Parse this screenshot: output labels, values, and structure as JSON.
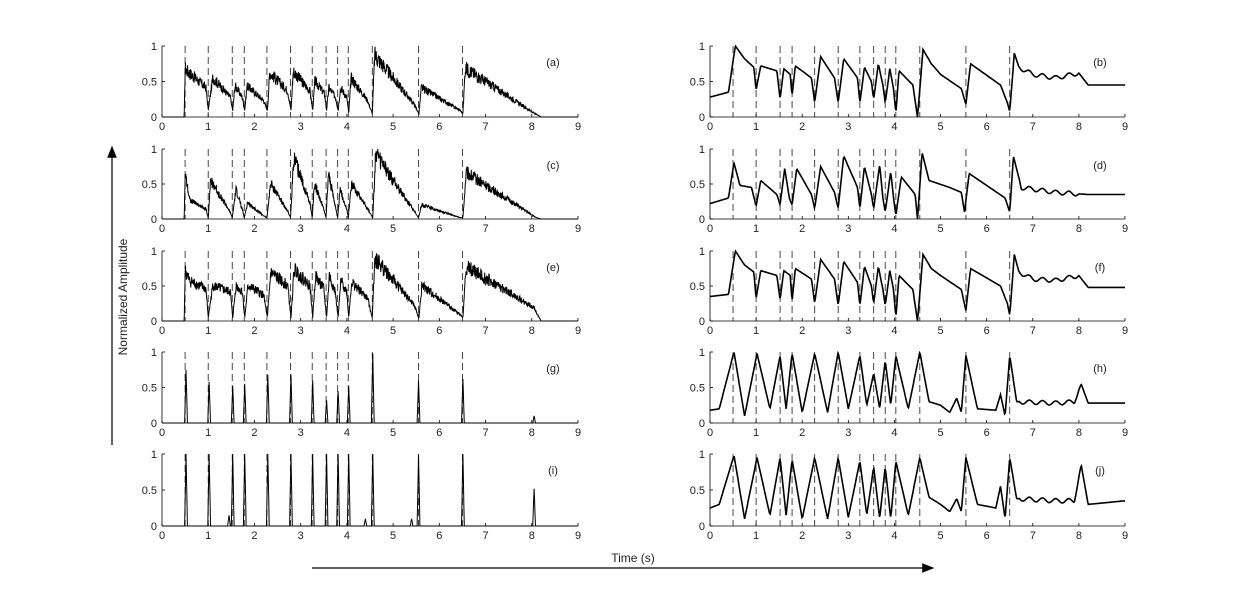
{
  "figure": {
    "ylabel": "Normalized Amplitude",
    "xlabel": "Time (s)"
  },
  "chart_data": {
    "type": "line",
    "xlabel": "Time (s)",
    "ylabel": "Normalized Amplitude",
    "xlim": [
      0,
      9
    ],
    "ylim": [
      0,
      1
    ],
    "xticks": [
      "0",
      "1",
      "2",
      "3",
      "4",
      "5",
      "6",
      "7",
      "8",
      "9"
    ],
    "yticks": [
      "0",
      "0.5",
      "1"
    ],
    "grid": false,
    "onset_markers_s": [
      0.5,
      1.0,
      1.52,
      1.78,
      2.27,
      2.78,
      3.25,
      3.55,
      3.8,
      4.03,
      4.55,
      5.55,
      6.5
    ],
    "panels": [
      {
        "label": "(a)",
        "column": "left",
        "row": 0,
        "style": "noisy",
        "envelope_t": [
          0,
          0.48,
          0.5,
          0.55,
          0.95,
          1.0,
          1.1,
          1.48,
          1.53,
          1.58,
          1.74,
          1.79,
          1.84,
          2.2,
          2.28,
          2.33,
          2.72,
          2.79,
          2.84,
          3.2,
          3.26,
          3.31,
          3.52,
          3.56,
          3.61,
          3.76,
          3.81,
          3.86,
          4.0,
          4.04,
          4.09,
          4.45,
          4.55,
          4.6,
          5.45,
          5.56,
          5.61,
          6.45,
          6.51,
          6.56,
          8.0,
          8.2,
          9
        ],
        "envelope_v": [
          0,
          0,
          0.75,
          0.7,
          0.45,
          0.1,
          0.6,
          0.3,
          0.1,
          0.48,
          0.3,
          0.1,
          0.48,
          0.25,
          0.1,
          0.68,
          0.4,
          0.1,
          0.7,
          0.4,
          0.1,
          0.55,
          0.35,
          0.1,
          0.45,
          0.3,
          0.1,
          0.45,
          0.3,
          0.05,
          0.6,
          0.25,
          0.05,
          0.95,
          0.2,
          0.05,
          0.45,
          0.1,
          0.05,
          0.75,
          0.08,
          0,
          0
        ]
      },
      {
        "label": "(b)",
        "column": "right",
        "row": 0,
        "style": "smooth",
        "envelope_t": [
          0,
          0.4,
          0.55,
          0.75,
          0.95,
          1.0,
          1.1,
          1.45,
          1.52,
          1.6,
          1.74,
          1.78,
          1.85,
          2.2,
          2.27,
          2.4,
          2.7,
          2.78,
          2.9,
          3.2,
          3.25,
          3.35,
          3.5,
          3.55,
          3.65,
          3.75,
          3.8,
          3.9,
          3.98,
          4.03,
          4.1,
          4.4,
          4.5,
          4.62,
          4.8,
          5.0,
          5.45,
          5.55,
          5.65,
          6.3,
          6.45,
          6.5,
          6.6,
          6.7,
          7.0,
          7.5,
          8.0,
          8.2,
          9
        ],
        "envelope_v": [
          0.28,
          0.35,
          1.0,
          0.82,
          0.7,
          0.38,
          0.72,
          0.65,
          0.25,
          0.68,
          0.6,
          0.3,
          0.72,
          0.55,
          0.2,
          0.85,
          0.55,
          0.2,
          0.82,
          0.55,
          0.2,
          0.7,
          0.5,
          0.25,
          0.75,
          0.45,
          0.2,
          0.68,
          0.4,
          0.05,
          0.65,
          0.45,
          0.0,
          0.95,
          0.75,
          0.6,
          0.4,
          0.18,
          0.75,
          0.45,
          0.2,
          0.08,
          0.9,
          0.7,
          0.6,
          0.55,
          0.62,
          0.45,
          0.45
        ]
      },
      {
        "label": "(c)",
        "column": "left",
        "row": 1,
        "style": "noisy",
        "envelope_t": [
          0,
          0.48,
          0.5,
          0.6,
          0.95,
          1.0,
          1.05,
          1.48,
          1.52,
          1.6,
          1.74,
          1.78,
          1.85,
          2.2,
          2.27,
          2.35,
          2.72,
          2.78,
          2.85,
          3.2,
          3.25,
          3.3,
          3.5,
          3.55,
          3.6,
          3.75,
          3.8,
          3.85,
          4.0,
          4.03,
          4.1,
          4.5,
          4.56,
          4.62,
          5.5,
          5.55,
          5.62,
          6.45,
          6.51,
          6.58,
          8.1,
          8.2,
          9
        ],
        "envelope_v": [
          0,
          0,
          0.72,
          0.3,
          0.15,
          0.02,
          0.6,
          0.1,
          0.02,
          0.45,
          0.15,
          0.02,
          0.25,
          0.05,
          0.02,
          0.55,
          0.12,
          0.02,
          0.95,
          0.25,
          0.02,
          0.55,
          0.15,
          0.02,
          0.72,
          0.2,
          0.02,
          0.45,
          0.15,
          0.02,
          0.55,
          0.1,
          0.02,
          1.0,
          0.08,
          0.02,
          0.22,
          0.02,
          0.02,
          0.72,
          0.02,
          0.0,
          0
        ]
      },
      {
        "label": "(d)",
        "column": "right",
        "row": 1,
        "style": "smooth",
        "envelope_t": [
          0,
          0.4,
          0.52,
          0.65,
          0.9,
          1.0,
          1.1,
          1.45,
          1.52,
          1.62,
          1.72,
          1.78,
          1.88,
          2.2,
          2.27,
          2.4,
          2.7,
          2.78,
          2.9,
          3.2,
          3.25,
          3.35,
          3.5,
          3.55,
          3.68,
          3.75,
          3.8,
          3.92,
          3.98,
          4.03,
          4.15,
          4.45,
          4.5,
          4.6,
          4.75,
          5.2,
          5.45,
          5.52,
          5.62,
          6.4,
          6.5,
          6.58,
          6.75,
          7.5,
          8.2,
          9
        ],
        "envelope_v": [
          0.22,
          0.3,
          0.8,
          0.48,
          0.45,
          0.18,
          0.55,
          0.35,
          0.2,
          0.72,
          0.3,
          0.2,
          0.72,
          0.35,
          0.15,
          0.75,
          0.38,
          0.15,
          0.9,
          0.45,
          0.15,
          0.75,
          0.35,
          0.15,
          0.78,
          0.3,
          0.1,
          0.68,
          0.3,
          0.05,
          0.6,
          0.35,
          0.0,
          0.95,
          0.55,
          0.45,
          0.38,
          0.1,
          0.65,
          0.3,
          0.1,
          0.9,
          0.45,
          0.38,
          0.35,
          0.35
        ]
      },
      {
        "label": "(e)",
        "column": "left",
        "row": 2,
        "style": "noisy",
        "envelope_t": [
          0,
          0.48,
          0.5,
          0.6,
          0.95,
          1.0,
          1.1,
          1.48,
          1.53,
          1.6,
          1.74,
          1.79,
          1.86,
          2.2,
          2.28,
          2.35,
          2.72,
          2.79,
          2.86,
          3.2,
          3.26,
          3.32,
          3.5,
          3.56,
          3.62,
          3.75,
          3.81,
          3.87,
          4.0,
          4.04,
          4.1,
          4.45,
          4.55,
          4.6,
          5.45,
          5.56,
          5.62,
          6.45,
          6.51,
          6.58,
          8.05,
          8.2,
          9
        ],
        "envelope_v": [
          0,
          0,
          0.78,
          0.62,
          0.5,
          0.05,
          0.55,
          0.45,
          0.05,
          0.55,
          0.45,
          0.05,
          0.55,
          0.4,
          0.05,
          0.75,
          0.55,
          0.05,
          0.8,
          0.55,
          0.05,
          0.7,
          0.5,
          0.05,
          0.7,
          0.45,
          0.05,
          0.62,
          0.45,
          0.05,
          0.6,
          0.35,
          0.05,
          0.98,
          0.25,
          0.05,
          0.55,
          0.1,
          0.05,
          0.85,
          0.2,
          0.0,
          0
        ]
      },
      {
        "label": "(f)",
        "column": "right",
        "row": 2,
        "style": "smooth",
        "envelope_t": [
          0,
          0.4,
          0.55,
          0.75,
          0.95,
          1.0,
          1.1,
          1.45,
          1.52,
          1.6,
          1.74,
          1.78,
          1.85,
          2.2,
          2.27,
          2.4,
          2.7,
          2.78,
          2.9,
          3.2,
          3.25,
          3.35,
          3.5,
          3.55,
          3.65,
          3.75,
          3.8,
          3.9,
          3.98,
          4.03,
          4.1,
          4.4,
          4.5,
          4.62,
          4.8,
          5.0,
          5.45,
          5.55,
          5.65,
          6.3,
          6.45,
          6.5,
          6.6,
          6.7,
          7.0,
          7.5,
          8.0,
          8.2,
          9
        ],
        "envelope_v": [
          0.35,
          0.38,
          1.0,
          0.8,
          0.7,
          0.32,
          0.72,
          0.65,
          0.3,
          0.72,
          0.65,
          0.28,
          0.75,
          0.6,
          0.25,
          0.88,
          0.6,
          0.22,
          0.85,
          0.55,
          0.22,
          0.78,
          0.5,
          0.25,
          0.78,
          0.45,
          0.22,
          0.72,
          0.45,
          0.05,
          0.65,
          0.45,
          0.0,
          0.95,
          0.75,
          0.65,
          0.45,
          0.15,
          0.75,
          0.5,
          0.25,
          0.08,
          0.95,
          0.7,
          0.6,
          0.58,
          0.65,
          0.48,
          0.48
        ]
      },
      {
        "label": "(g)",
        "column": "left",
        "row": 3,
        "style": "spikes",
        "spike_t": [
          0.52,
          1.02,
          1.53,
          1.79,
          2.29,
          2.79,
          3.26,
          3.56,
          3.81,
          4.04,
          4.56,
          5.55,
          6.51,
          8.05
        ],
        "spike_v": [
          0.75,
          0.58,
          0.52,
          0.55,
          0.68,
          0.68,
          0.6,
          0.32,
          0.45,
          0.52,
          0.98,
          0.6,
          0.62,
          0.1
        ],
        "spike_w": 0.03
      },
      {
        "label": "(h)",
        "column": "right",
        "row": 3,
        "style": "smooth",
        "envelope_t": [
          0,
          0.2,
          0.52,
          0.75,
          1.02,
          1.3,
          1.52,
          1.65,
          1.78,
          2.0,
          2.27,
          2.55,
          2.78,
          3.0,
          3.25,
          3.4,
          3.55,
          3.68,
          3.8,
          3.92,
          4.03,
          4.3,
          4.55,
          4.75,
          5.0,
          5.2,
          5.35,
          5.45,
          5.55,
          5.8,
          6.2,
          6.3,
          6.4,
          6.5,
          6.65,
          7.5,
          7.9,
          8.05,
          8.2,
          9
        ],
        "envelope_v": [
          0.18,
          0.2,
          1.0,
          0.1,
          0.98,
          0.2,
          0.95,
          0.2,
          0.98,
          0.15,
          0.98,
          0.15,
          1.0,
          0.2,
          0.95,
          0.25,
          0.7,
          0.2,
          0.88,
          0.25,
          0.95,
          0.2,
          1.0,
          0.3,
          0.25,
          0.15,
          0.35,
          0.15,
          0.95,
          0.2,
          0.18,
          0.4,
          0.1,
          0.95,
          0.3,
          0.28,
          0.3,
          0.55,
          0.28,
          0.28
        ]
      },
      {
        "label": "(i)",
        "column": "left",
        "row": 4,
        "style": "spikes",
        "spike_t": [
          0.52,
          1.02,
          1.53,
          1.79,
          2.29,
          2.79,
          3.26,
          3.56,
          3.81,
          4.04,
          4.56,
          5.55,
          6.51,
          8.05,
          1.45,
          4.4,
          5.4
        ],
        "spike_v": [
          1.0,
          1.0,
          1.0,
          1.0,
          1.0,
          1.0,
          1.0,
          1.0,
          1.0,
          1.0,
          1.0,
          1.0,
          1.0,
          0.52,
          0.15,
          0.1,
          0.1
        ],
        "spike_w": 0.03
      },
      {
        "label": "(j)",
        "column": "right",
        "row": 4,
        "style": "smooth",
        "envelope_t": [
          0,
          0.2,
          0.52,
          0.75,
          1.02,
          1.3,
          1.52,
          1.65,
          1.78,
          2.0,
          2.27,
          2.55,
          2.78,
          3.0,
          3.25,
          3.4,
          3.55,
          3.68,
          3.8,
          3.92,
          4.03,
          4.3,
          4.55,
          4.75,
          5.0,
          5.2,
          5.35,
          5.45,
          5.55,
          5.8,
          6.2,
          6.3,
          6.4,
          6.5,
          6.65,
          7.5,
          7.9,
          8.05,
          8.2,
          9
        ],
        "envelope_v": [
          0.25,
          0.3,
          0.98,
          0.1,
          0.95,
          0.15,
          0.95,
          0.15,
          0.92,
          0.1,
          0.95,
          0.1,
          0.95,
          0.12,
          0.9,
          0.15,
          0.82,
          0.1,
          0.82,
          0.1,
          0.9,
          0.15,
          0.95,
          0.4,
          0.3,
          0.2,
          0.38,
          0.2,
          0.95,
          0.3,
          0.25,
          0.55,
          0.1,
          0.95,
          0.38,
          0.35,
          0.35,
          0.85,
          0.3,
          0.35
        ]
      }
    ]
  }
}
